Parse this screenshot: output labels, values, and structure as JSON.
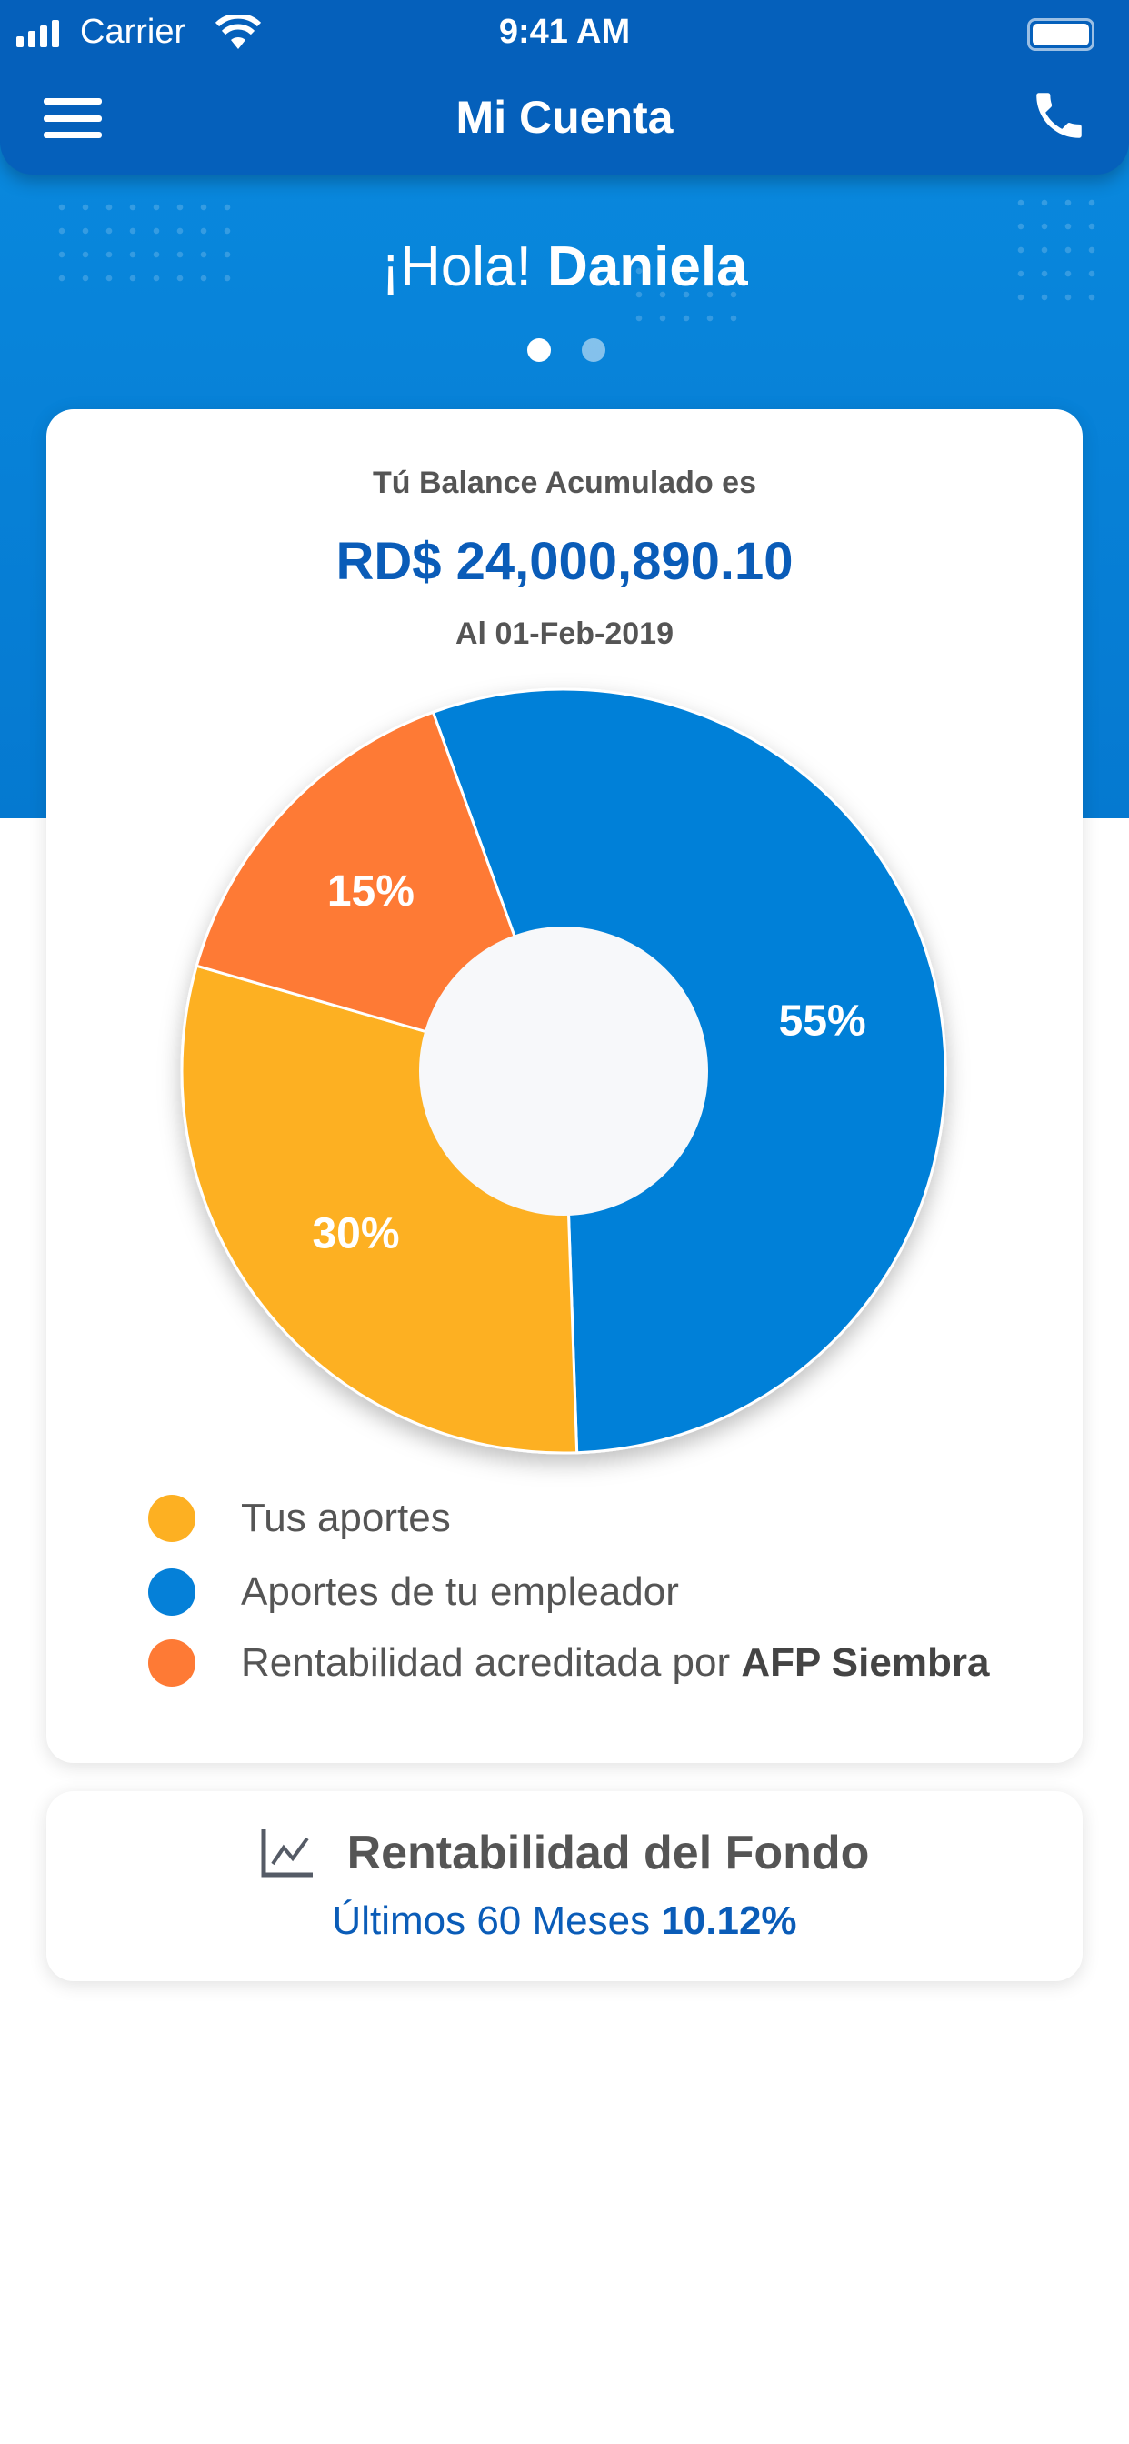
{
  "status_bar": {
    "carrier": "Carrier",
    "time": "9:41 AM"
  },
  "nav": {
    "title": "Mi Cuenta"
  },
  "greeting": {
    "hello": "¡Hola!",
    "name": "Daniela"
  },
  "balance": {
    "label": "Tú Balance Acumulado es",
    "amount": "RD$ 24,000,890.10",
    "date": "Al 01-Feb-2019"
  },
  "chart_data": {
    "type": "pie",
    "slices": [
      {
        "name": "Aportes de tu empleador",
        "value": 55,
        "label": "55%",
        "color": "#0580d8"
      },
      {
        "name": "Tus aportes",
        "value": 30,
        "label": "30%",
        "color": "#fdb022"
      },
      {
        "name": "Rentabilidad acreditada por AFP Siembra",
        "value": 15,
        "label": "15%",
        "color": "#fe7a35"
      }
    ]
  },
  "legend": [
    {
      "label": "Tus aportes",
      "color": "#fdb022"
    },
    {
      "label": "Aportes de tu empleador",
      "color": "#0580d8"
    },
    {
      "label": "Rentabilidad acreditada por ",
      "bold": "AFP Siembra",
      "color": "#fe7a35"
    }
  ],
  "fund": {
    "title": "Rentabilidad del Fondo",
    "period": "Últimos 60 Meses",
    "value": "10.12%"
  }
}
